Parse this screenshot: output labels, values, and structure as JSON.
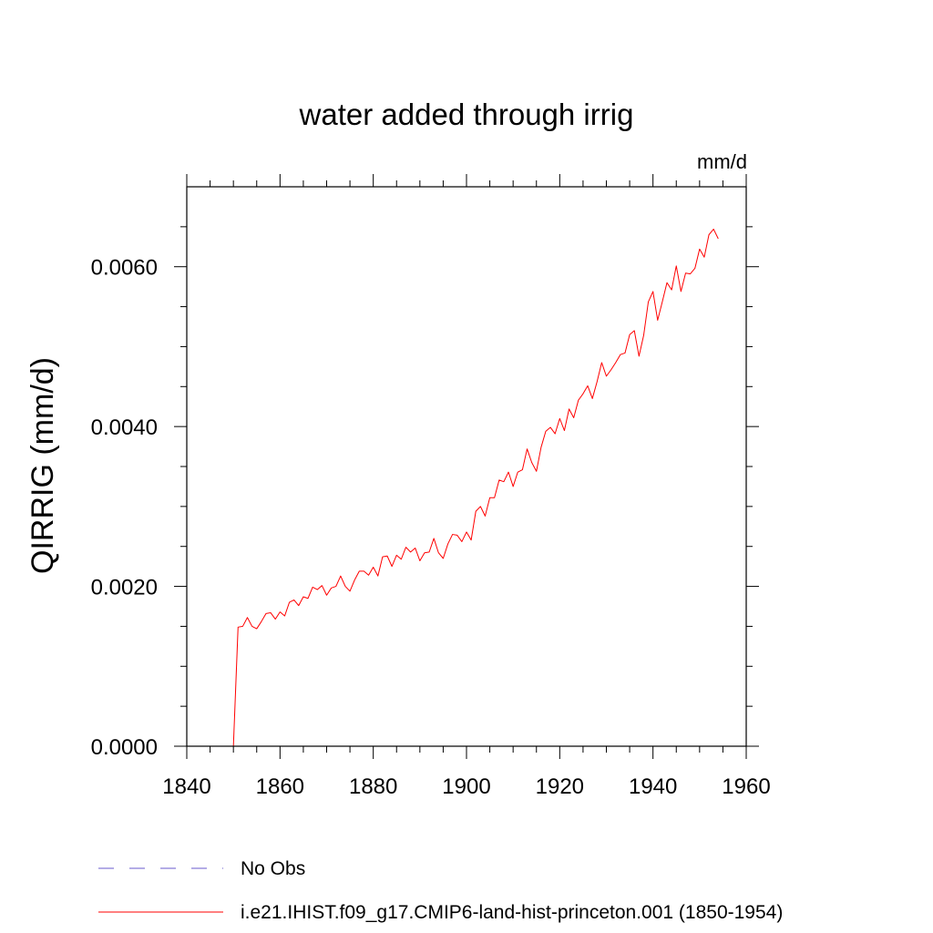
{
  "chart_data": {
    "type": "line",
    "title": "water added through irrig",
    "units_label": "mm/d",
    "ylabel": "QIRRIG  (mm/d)",
    "xlabel": "",
    "xlim": [
      1840,
      1960
    ],
    "ylim": [
      0.0,
      0.007
    ],
    "x_ticks": [
      1840,
      1860,
      1880,
      1900,
      1920,
      1940,
      1960
    ],
    "x_tick_labels": [
      "1840",
      "1860",
      "1880",
      "1900",
      "1920",
      "1940",
      "1960"
    ],
    "y_ticks": [
      0.0,
      0.002,
      0.004,
      0.006
    ],
    "y_tick_labels": [
      "0.0000",
      "0.0020",
      "0.0040",
      "0.0060"
    ],
    "grid": false,
    "legend_position": "bottom",
    "series": [
      {
        "name": "No Obs",
        "color": "#6a5acd",
        "dash": "dashed",
        "x": [],
        "y": []
      },
      {
        "name": "i.e21.IHIST.f09_g17.CMIP6-land-hist-princeton.001 (1850-1954)",
        "color": "#ff0000",
        "dash": "solid",
        "x": [
          1850,
          1851,
          1852,
          1853,
          1854,
          1855,
          1856,
          1857,
          1858,
          1859,
          1860,
          1861,
          1862,
          1863,
          1864,
          1865,
          1866,
          1867,
          1868,
          1869,
          1870,
          1871,
          1872,
          1873,
          1874,
          1875,
          1876,
          1877,
          1878,
          1879,
          1880,
          1881,
          1882,
          1883,
          1884,
          1885,
          1886,
          1887,
          1888,
          1889,
          1890,
          1891,
          1892,
          1893,
          1894,
          1895,
          1896,
          1897,
          1898,
          1899,
          1900,
          1901,
          1902,
          1903,
          1904,
          1905,
          1906,
          1907,
          1908,
          1909,
          1910,
          1911,
          1912,
          1913,
          1914,
          1915,
          1916,
          1917,
          1918,
          1919,
          1920,
          1921,
          1922,
          1923,
          1924,
          1925,
          1926,
          1927,
          1928,
          1929,
          1930,
          1931,
          1932,
          1933,
          1934,
          1935,
          1936,
          1937,
          1938,
          1939,
          1940,
          1941,
          1942,
          1943,
          1944,
          1945,
          1946,
          1947,
          1948,
          1949,
          1950,
          1951,
          1952,
          1953,
          1954
        ],
        "y": [
          0.0,
          0.00149,
          0.0015,
          0.00161,
          0.0015,
          0.00147,
          0.00156,
          0.00166,
          0.00167,
          0.00159,
          0.00168,
          0.00163,
          0.0018,
          0.00183,
          0.00176,
          0.00187,
          0.00185,
          0.00199,
          0.00196,
          0.00201,
          0.00189,
          0.00198,
          0.002,
          0.00213,
          0.002,
          0.00194,
          0.00208,
          0.00219,
          0.00219,
          0.00214,
          0.00224,
          0.00213,
          0.00237,
          0.00238,
          0.00225,
          0.00239,
          0.00234,
          0.00249,
          0.00243,
          0.00248,
          0.00232,
          0.00242,
          0.00243,
          0.0026,
          0.00242,
          0.00235,
          0.00253,
          0.00265,
          0.00264,
          0.00256,
          0.00268,
          0.00258,
          0.00294,
          0.003,
          0.00288,
          0.00311,
          0.00311,
          0.00333,
          0.00331,
          0.00343,
          0.00325,
          0.00343,
          0.00346,
          0.00372,
          0.00355,
          0.00344,
          0.00374,
          0.00394,
          0.00399,
          0.00391,
          0.0041,
          0.00395,
          0.00422,
          0.00411,
          0.00433,
          0.00441,
          0.00451,
          0.00435,
          0.00456,
          0.0048,
          0.00463,
          0.00471,
          0.0048,
          0.0049,
          0.00492,
          0.00515,
          0.0052,
          0.00488,
          0.00514,
          0.00556,
          0.00569,
          0.00533,
          0.00556,
          0.0058,
          0.00571,
          0.00601,
          0.00569,
          0.00592,
          0.00591,
          0.00598,
          0.00622,
          0.00612,
          0.0064,
          0.00647,
          0.00635
        ]
      }
    ]
  }
}
